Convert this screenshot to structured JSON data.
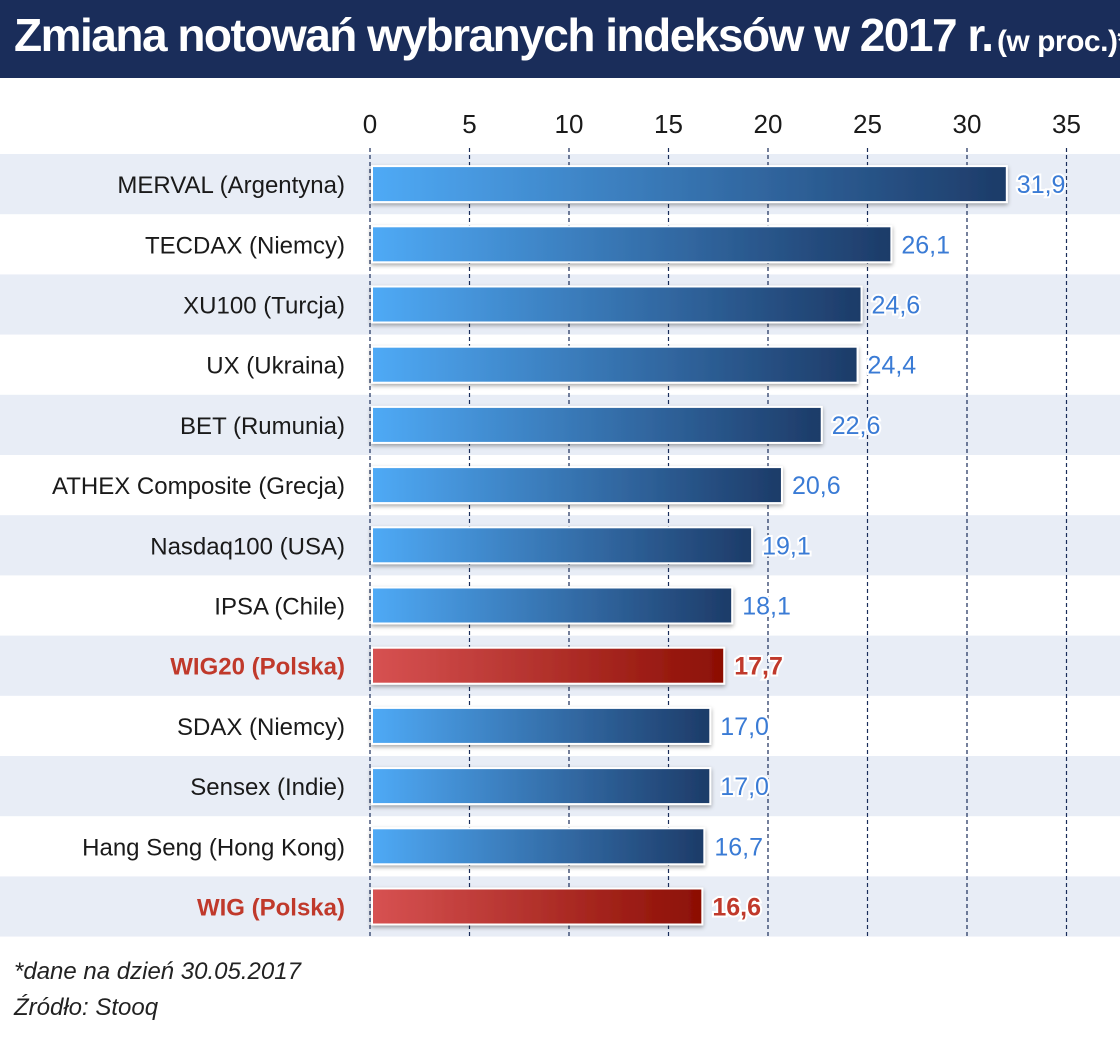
{
  "title": "Zmiana notowań wybranych indeksów w 2017 r.",
  "title_unit": "(w proc.)*",
  "footnote": "*dane na dzień 30.05.2017",
  "source": "Źródło: Stooq",
  "colors": {
    "header": "#1a2d5a",
    "band": "#e8edf6",
    "bar_default_start": "#4faaf6",
    "bar_default_end": "#1d3b68",
    "bar_highlight_start": "#d75252",
    "bar_highlight_end": "#8c0f04",
    "label_default": "#1a1a1a",
    "value_default": "#3a7bd5",
    "highlight_text": "#c0392b"
  },
  "chart_data": {
    "type": "bar",
    "orientation": "horizontal",
    "xlim": [
      0,
      35
    ],
    "xticks": [
      "0",
      "5",
      "10",
      "15",
      "20",
      "25",
      "30",
      "35"
    ],
    "categories": [
      "MERVAL (Argentyna)",
      "TECDAX (Niemcy)",
      "XU100 (Turcja)",
      "UX (Ukraina)",
      "BET (Rumunia)",
      "ATHEX Composite (Grecja)",
      "Nasdaq100 (USA)",
      "IPSA (Chile)",
      "WIG20 (Polska)",
      "SDAX (Niemcy)",
      "Sensex (Indie)",
      "Hang Seng (Hong Kong)",
      "WIG (Polska)"
    ],
    "values": [
      31.9,
      26.1,
      24.6,
      24.4,
      22.6,
      20.6,
      19.1,
      18.1,
      17.7,
      17.0,
      17.0,
      16.7,
      16.6
    ],
    "value_labels": [
      "31,9",
      "26,1",
      "24,6",
      "24,4",
      "22,6",
      "20,6",
      "19,1",
      "18,1",
      "17,7",
      "17,0",
      "17,0",
      "16,7",
      "16,6"
    ],
    "highlighted": [
      "WIG20 (Polska)",
      "WIG (Polska)"
    ],
    "grid": true,
    "alternating_bands": true
  }
}
